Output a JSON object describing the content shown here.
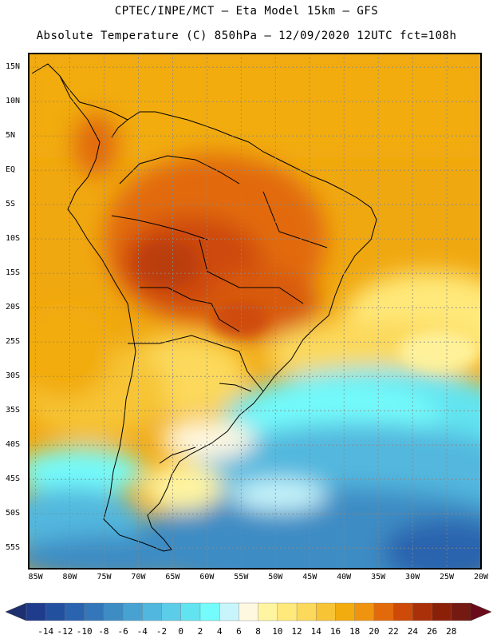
{
  "header": {
    "line1": "CPTEC/INPE/MCT –  Eta Model 15km – GFS",
    "line2": "Absolute Temperature (C) 850hPa – 12/09/2020 12UTC fct=108h"
  },
  "map": {
    "region": "South America",
    "lat_labels": [
      "15N",
      "10N",
      "5N",
      "EQ",
      "5S",
      "10S",
      "15S",
      "20S",
      "25S",
      "30S",
      "35S",
      "40S",
      "45S",
      "50S",
      "55S"
    ],
    "lat_values": [
      15,
      10,
      5,
      0,
      -5,
      -10,
      -15,
      -20,
      -25,
      -30,
      -35,
      -40,
      -45,
      -50,
      -55
    ],
    "lon_labels": [
      "85W",
      "80W",
      "75W",
      "70W",
      "65W",
      "60W",
      "55W",
      "50W",
      "45W",
      "40W",
      "35W",
      "30W",
      "25W",
      "20W"
    ],
    "lon_values": [
      -85,
      -80,
      -75,
      -70,
      -65,
      -60,
      -55,
      -50,
      -45,
      -40,
      -35,
      -30,
      -25,
      -20
    ],
    "lat_range": [
      -58,
      17
    ],
    "lon_range": [
      -86,
      -20
    ]
  },
  "colorbar": {
    "labels": [
      "-14",
      "-12",
      "-10",
      "-8",
      "-6",
      "-4",
      "-2",
      "0",
      "2",
      "4",
      "6",
      "8",
      "10",
      "12",
      "14",
      "16",
      "18",
      "20",
      "22",
      "24",
      "26",
      "28"
    ],
    "colors": [
      "#1f3c8c",
      "#23509e",
      "#2a63ae",
      "#3377ba",
      "#3d8cc4",
      "#47a2d2",
      "#52b7de",
      "#5ccde8",
      "#62e4f0",
      "#74fbfb",
      "#c7f5fb",
      "#fff8e1",
      "#fff4a0",
      "#ffe97a",
      "#fcd95b",
      "#f6c435",
      "#f2ac10",
      "#f09410",
      "#e26a0a",
      "#cd4a08",
      "#aa300a",
      "#8a2008",
      "#741a12"
    ],
    "low_arrow_color": "#1d2f6e",
    "high_arrow_color": "#6b0a1a"
  }
}
